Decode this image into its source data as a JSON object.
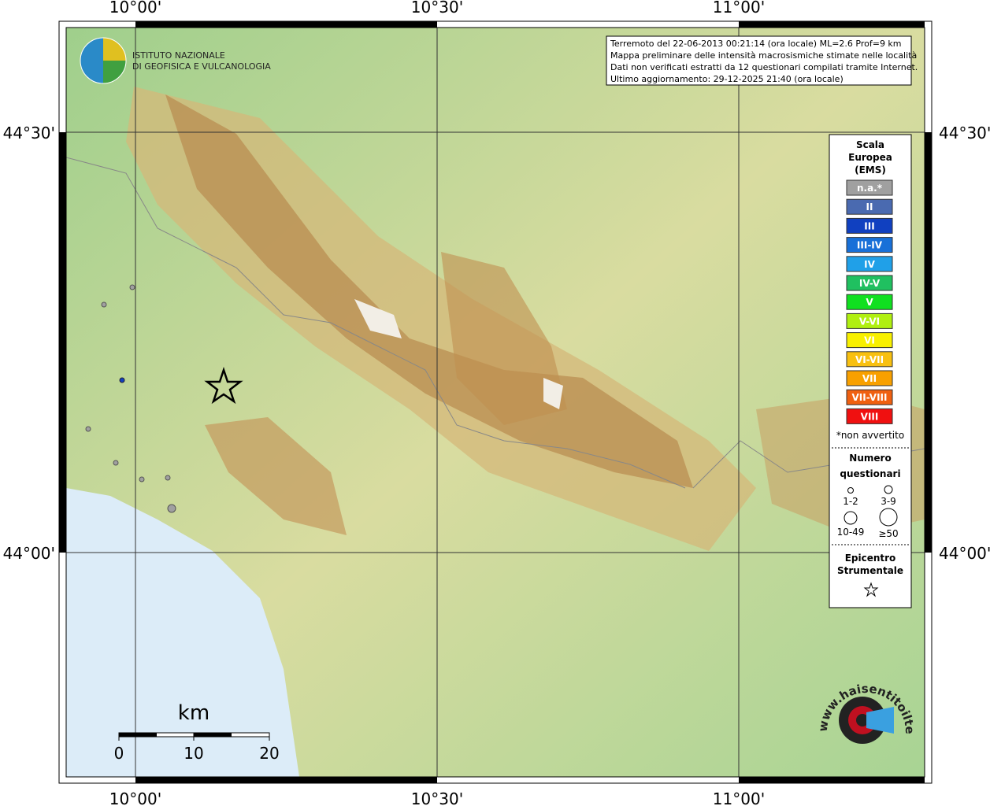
{
  "map": {
    "top_labels": [
      "10°00'",
      "10°30'",
      "11°00'"
    ],
    "bottom_labels": [
      "10°00'",
      "10°30'",
      "11°00'"
    ],
    "left_labels": [
      "44°30'",
      "44°00'"
    ],
    "right_labels": [
      "44°30'",
      "44°00'"
    ],
    "logo": [
      "ISTITUTO NAZIONALE",
      "DI GEOFISICA E VULCANOLOGIA"
    ],
    "info": [
      "Terremoto del 22-06-2013 00:21:14 (ora locale) ML=2.6 Prof=9 km",
      "Mappa preliminare delle intensità macrosismiche stimate nelle località",
      "Dati non verificati estratti da 12 questionari compilati tramite Internet.",
      "Ultimo aggiornamento: 29-12-2025 21:40 (ora locale)"
    ],
    "legend": {
      "title": [
        "Scala",
        "Europea",
        "(EMS)"
      ],
      "classes": [
        {
          "label": "n.a.*",
          "color": "#a0a0a0"
        },
        {
          "label": "II",
          "color": "#4a6ab0"
        },
        {
          "label": "III",
          "color": "#1040c0"
        },
        {
          "label": "III-IV",
          "color": "#1870d8"
        },
        {
          "label": "IV",
          "color": "#20a0e8"
        },
        {
          "label": "IV-V",
          "color": "#20c060"
        },
        {
          "label": "V",
          "color": "#10e020"
        },
        {
          "label": "V-VI",
          "color": "#b0f010"
        },
        {
          "label": "VI",
          "color": "#f8f000"
        },
        {
          "label": "VI-VII",
          "color": "#f8c010"
        },
        {
          "label": "VII",
          "color": "#f8a000"
        },
        {
          "label": "VII-VIII",
          "color": "#f06010"
        },
        {
          "label": "VIII",
          "color": "#f01010"
        }
      ],
      "note": "*non avvertito",
      "count_title": [
        "Numero",
        "questionari"
      ],
      "count_classes": [
        "1-2",
        "3-9",
        "10-49",
        "≥50"
      ],
      "epicenter_title": [
        "Epicentro",
        "Strumentale"
      ]
    },
    "scale": {
      "unit": "km",
      "ticks": [
        "0",
        "10",
        "20"
      ]
    },
    "watermark": "www.haisentitoilterremoto.it"
  }
}
